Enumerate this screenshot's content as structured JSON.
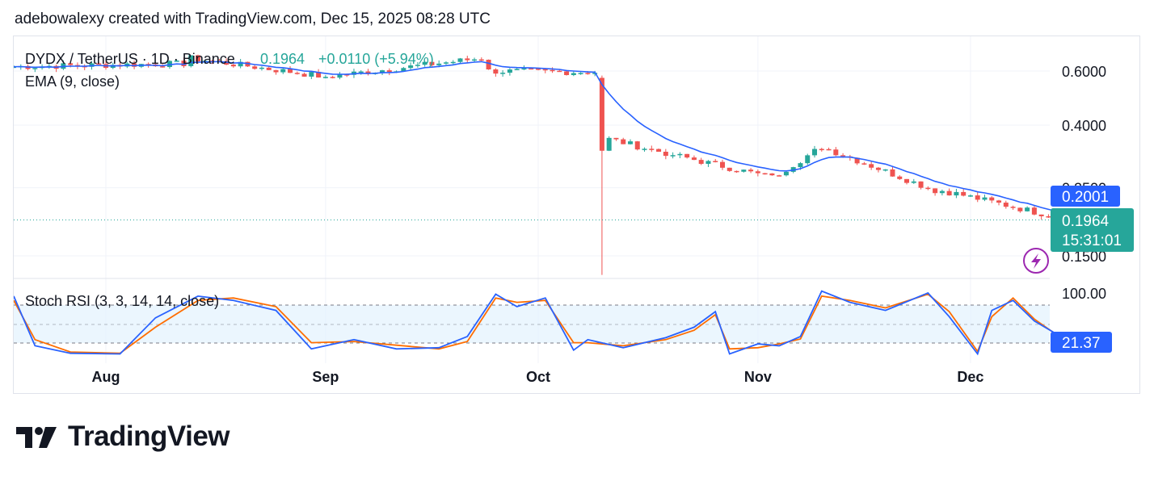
{
  "header": {
    "credit": "adebowalexy created with TradingView.com, Dec 15, 2025 08:28 UTC"
  },
  "legend": {
    "symbol": "DYDX / TetherUS · 1D · Binance",
    "price": "0.1964",
    "change": "+0.0110 (+5.94%)",
    "ema_label": "EMA (9, close)"
  },
  "price_badges": {
    "ema": "0.2001",
    "last": "0.1964",
    "countdown": "15:31:01"
  },
  "oscillator": {
    "label": "Stoch RSI (3, 3, 14, 14, close)",
    "value": "21.37"
  },
  "brand": {
    "name": "TradingView"
  },
  "colors": {
    "up": "#26a69a",
    "down": "#ef5350",
    "ema": "#2962ff",
    "stoch_k": "#2962ff",
    "stoch_d": "#ff6d00",
    "band": "#e3f2fd",
    "badge_ema": "#2962ff",
    "badge_last": "#26a69a",
    "alert_icon": "#9c27b0"
  },
  "chart_data": [
    {
      "type": "candlestick",
      "title": "DYDX / TetherUS · 1D · Binance",
      "x_ticks": [
        "Aug",
        "Sep",
        "Oct",
        "Nov",
        "Dec"
      ],
      "y_ticks": [
        0.6,
        0.4,
        0.25,
        0.15
      ],
      "y_tick_labels": [
        "0.6000",
        "0.4000",
        "0.2500",
        "0.1500"
      ],
      "y_scale": "log",
      "last_price": 0.1964,
      "ema_last": 0.2001,
      "segments": [
        {
          "from": "Jul 19",
          "to": "Aug 13",
          "start": 0.62,
          "end": 0.635
        },
        {
          "from": "Aug 13",
          "to": "Sep 01",
          "start": 0.66,
          "end": 0.575
        },
        {
          "from": "Sep 01",
          "to": "Sep 24",
          "start": 0.575,
          "end": 0.665
        },
        {
          "from": "Sep 24",
          "to": "Oct 09",
          "start": 0.6,
          "end": 0.595
        }
      ],
      "crash": {
        "date": "Oct 10",
        "open": 0.57,
        "close": 0.33,
        "low": 0.13,
        "high": 0.58
      },
      "segments_after": [
        {
          "from": "Oct 11",
          "to": "Oct 20",
          "start": 0.36,
          "end": 0.32
        },
        {
          "from": "Oct 20",
          "to": "Nov 03",
          "start": 0.32,
          "end": 0.27
        },
        {
          "from": "Nov 03",
          "to": "Nov 10",
          "start": 0.27,
          "end": 0.34
        },
        {
          "from": "Nov 10",
          "to": "Nov 27",
          "start": 0.34,
          "end": 0.24
        },
        {
          "from": "Nov 27",
          "to": "Dec 15",
          "start": 0.245,
          "end": 0.1964
        }
      ]
    },
    {
      "type": "line",
      "title": "Stoch RSI (3, 3, 14, 14, close)",
      "y_ticks": [
        100.0
      ],
      "y_tick_labels": [
        "100.00"
      ],
      "band": [
        20,
        80
      ],
      "dates": [
        "Jul 19",
        "Jul 22",
        "Jul 27",
        "Aug 03",
        "Aug 08",
        "Aug 14",
        "Aug 19",
        "Aug 25",
        "Aug 30",
        "Sep 05",
        "Sep 11",
        "Sep 17",
        "Sep 21",
        "Sep 25",
        "Sep 28",
        "Oct 02",
        "Oct 06",
        "Oct 08",
        "Oct 13",
        "Oct 19",
        "Oct 23",
        "Oct 26",
        "Oct 28",
        "Nov 01",
        "Nov 04",
        "Nov 07",
        "Nov 10",
        "Nov 14",
        "Nov 19",
        "Nov 25",
        "Nov 28",
        "Dec 02",
        "Dec 04",
        "Dec 07",
        "Dec 10",
        "Dec 15"
      ],
      "series": [
        {
          "name": "K",
          "values": [
            95,
            15,
            3,
            2,
            60,
            95,
            88,
            72,
            10,
            25,
            10,
            12,
            30,
            98,
            78,
            92,
            8,
            25,
            12,
            28,
            45,
            70,
            2,
            18,
            15,
            30,
            103,
            85,
            72,
            100,
            62,
            2,
            72,
            88,
            55,
            21.37
          ]
        },
        {
          "name": "D",
          "values": [
            88,
            25,
            5,
            3,
            45,
            88,
            92,
            78,
            20,
            22,
            16,
            10,
            22,
            92,
            85,
            88,
            20,
            20,
            15,
            25,
            40,
            65,
            10,
            12,
            18,
            26,
            95,
            88,
            76,
            98,
            70,
            6,
            62,
            92,
            58,
            18
          ]
        }
      ]
    }
  ]
}
